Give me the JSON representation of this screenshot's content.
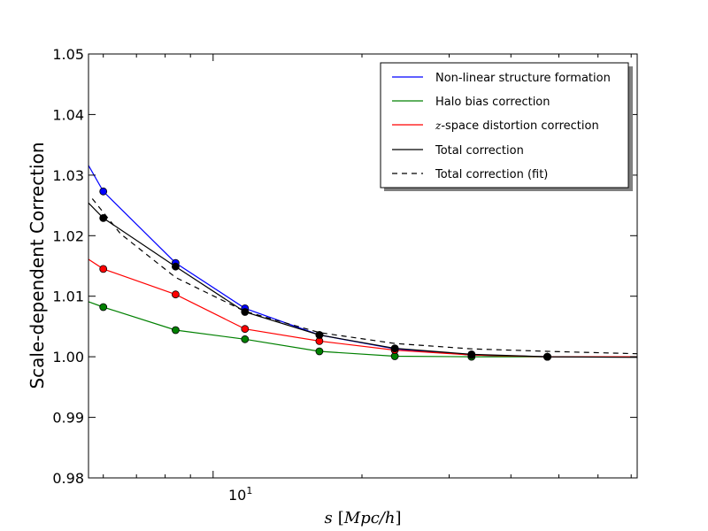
{
  "chart_data": {
    "type": "line",
    "title": "",
    "ylabel": "Scale-dependent Correction",
    "xlabel": {
      "var": "s",
      "open": "[",
      "unit": "Mpc/h",
      "close": "]"
    },
    "xscale": "log",
    "xlim": [
      5.6,
      72
    ],
    "ylim": [
      0.98,
      1.05
    ],
    "yticks": [
      0.98,
      0.99,
      1.0,
      1.01,
      1.02,
      1.03,
      1.04,
      1.05
    ],
    "ytick_labels": [
      "0.98",
      "0.99",
      "1.00",
      "1.01",
      "1.02",
      "1.03",
      "1.04",
      "1.05"
    ],
    "xticks_major": [
      10
    ],
    "xtick_labels": [
      {
        "base": "10",
        "exp": "1"
      }
    ],
    "xticks_minor": [
      6,
      7,
      8,
      9,
      20,
      30,
      40,
      50,
      60,
      70
    ],
    "legend_position": "top-right",
    "series": [
      {
        "name": "Non-linear structure formation",
        "color": "#0000ff",
        "style": "solid",
        "line_x": [
          5.6,
          6.0,
          8.4,
          11.6,
          16.4,
          23.3,
          33.3,
          47.4,
          72
        ],
        "line_y": [
          1.0316,
          1.0273,
          1.0155,
          1.008,
          1.0036,
          1.0013,
          1.0003,
          1.0,
          1.0
        ],
        "marker_x": [
          6.0,
          8.4,
          11.6,
          16.4,
          23.3,
          33.3,
          47.4
        ],
        "marker_y": [
          1.0273,
          1.0155,
          1.008,
          1.0036,
          1.0013,
          1.0003,
          1.0
        ]
      },
      {
        "name": "Halo bias correction",
        "color": "#008000",
        "style": "solid",
        "line_x": [
          5.6,
          6.0,
          8.4,
          11.6,
          16.4,
          23.3,
          33.3,
          47.4,
          72
        ],
        "line_y": [
          1.0091,
          1.0082,
          1.0044,
          1.0029,
          1.0009,
          1.0001,
          1.0,
          1.0,
          1.0
        ],
        "marker_x": [
          6.0,
          8.4,
          11.6,
          16.4,
          23.3,
          33.3,
          47.4
        ],
        "marker_y": [
          1.0082,
          1.0044,
          1.0029,
          1.0009,
          1.0001,
          1.0,
          1.0
        ]
      },
      {
        "name": "z-space distortion correction",
        "name_var": "z",
        "name_rest": "-space distortion correction",
        "color": "#ff0000",
        "style": "solid",
        "line_x": [
          5.6,
          6.0,
          8.4,
          11.6,
          16.4,
          23.3,
          33.3,
          47.4,
          72
        ],
        "line_y": [
          1.0161,
          1.0145,
          1.0103,
          1.0046,
          1.0026,
          1.0011,
          1.0003,
          1.0,
          1.0
        ],
        "marker_x": [
          6.0,
          8.4,
          11.6,
          16.4,
          23.3,
          33.3,
          47.4
        ],
        "marker_y": [
          1.0145,
          1.0103,
          1.0046,
          1.0026,
          1.0011,
          1.0003,
          1.0
        ]
      },
      {
        "name": "Total correction",
        "color": "#000000",
        "style": "solid",
        "line_x": [
          5.6,
          6.0,
          8.4,
          11.6,
          16.4,
          23.3,
          33.3,
          47.4,
          72
        ],
        "line_y": [
          1.0254,
          1.0229,
          1.0149,
          1.0074,
          1.0036,
          1.0014,
          1.0004,
          1.0,
          0.9999
        ],
        "marker_x": [
          6.0,
          8.4,
          11.6,
          16.4,
          23.3,
          33.3,
          47.4
        ],
        "marker_y": [
          1.0229,
          1.0149,
          1.0074,
          1.0036,
          1.0014,
          1.0004,
          1.0
        ]
      },
      {
        "name": "Total correction (fit)",
        "color": "#000000",
        "style": "dashed",
        "line_x": [
          5.7,
          6.5,
          8.4,
          11.6,
          16.4,
          23.3,
          33.3,
          47.4,
          72
        ],
        "line_y": [
          1.0261,
          1.0203,
          1.0131,
          1.0075,
          1.004,
          1.0022,
          1.0013,
          1.0009,
          1.0005
        ],
        "marker_x": [],
        "marker_y": []
      }
    ]
  }
}
